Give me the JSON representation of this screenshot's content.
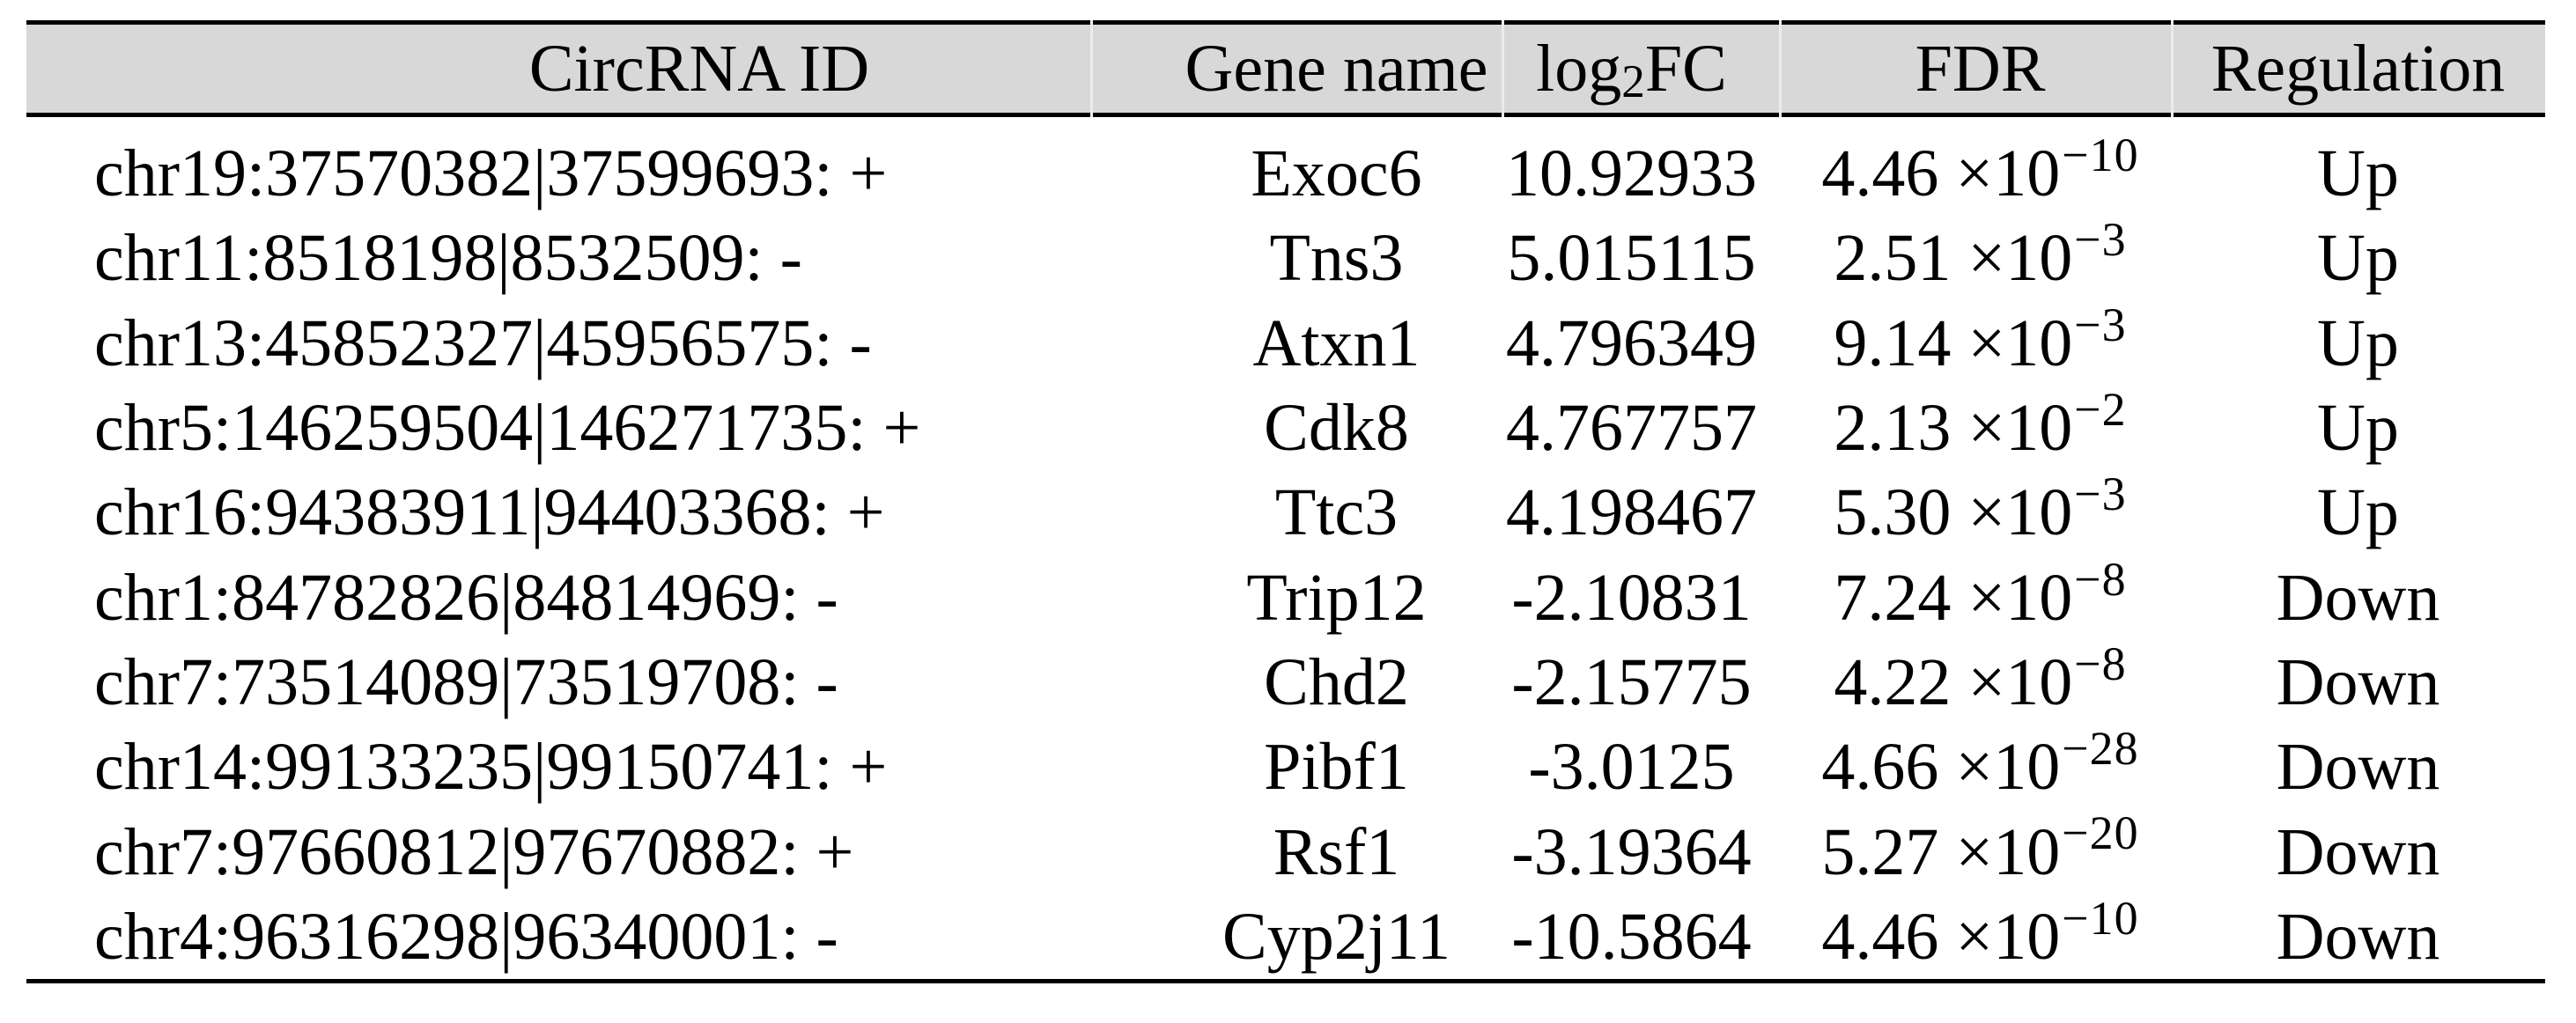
{
  "table": {
    "header": {
      "circrna_id": "CircRNA ID",
      "gene_name": "Gene name",
      "log2fc": {
        "prefix": "log",
        "sub": "2",
        "suffix": "FC"
      },
      "fdr": "FDR",
      "regulation": "Regulation"
    },
    "rows": [
      {
        "circrna_id": "chr19:37570382|37599693: +",
        "gene_name": "Exoc6",
        "log2fc": "10.92933",
        "fdr_base": "4.46 ×10",
        "fdr_exp": "−10",
        "regulation": "Up"
      },
      {
        "circrna_id": "chr11:8518198|8532509: -",
        "gene_name": "Tns3",
        "log2fc": "5.015115",
        "fdr_base": "2.51 ×10",
        "fdr_exp": "−3",
        "regulation": "Up"
      },
      {
        "circrna_id": "chr13:45852327|45956575: -",
        "gene_name": "Atxn1",
        "log2fc": "4.796349",
        "fdr_base": "9.14 ×10",
        "fdr_exp": "−3",
        "regulation": "Up"
      },
      {
        "circrna_id": "chr5:146259504|146271735: +",
        "gene_name": "Cdk8",
        "log2fc": "4.767757",
        "fdr_base": "2.13 ×10",
        "fdr_exp": "−2",
        "regulation": "Up"
      },
      {
        "circrna_id": "chr16:94383911|94403368: +",
        "gene_name": "Ttc3",
        "log2fc": "4.198467",
        "fdr_base": "5.30 ×10",
        "fdr_exp": "−3",
        "regulation": "Up"
      },
      {
        "circrna_id": "chr1:84782826|84814969: -",
        "gene_name": "Trip12",
        "log2fc": "-2.10831",
        "fdr_base": "7.24 ×10",
        "fdr_exp": "−8",
        "regulation": "Down"
      },
      {
        "circrna_id": "chr7:73514089|73519708: -",
        "gene_name": "Chd2",
        "log2fc": "-2.15775",
        "fdr_base": "4.22 ×10",
        "fdr_exp": "−8",
        "regulation": "Down"
      },
      {
        "circrna_id": "chr14:99133235|99150741: +",
        "gene_name": "Pibf1",
        "log2fc": "-3.0125",
        "fdr_base": "4.66 ×10",
        "fdr_exp": "−28",
        "regulation": "Down"
      },
      {
        "circrna_id": "chr7:97660812|97670882: +",
        "gene_name": "Rsf1",
        "log2fc": "-3.19364",
        "fdr_base": "5.27 ×10",
        "fdr_exp": "−20",
        "regulation": "Down"
      },
      {
        "circrna_id": "chr4:96316298|96340001: -",
        "gene_name": "Cyp2j11",
        "log2fc": "-10.5864",
        "fdr_base": "4.46 ×10",
        "fdr_exp": "−10",
        "regulation": "Down"
      }
    ],
    "colors": {
      "header_bg": "#d8d8d8",
      "border": "#000000",
      "column_separator": "#ececec"
    }
  }
}
